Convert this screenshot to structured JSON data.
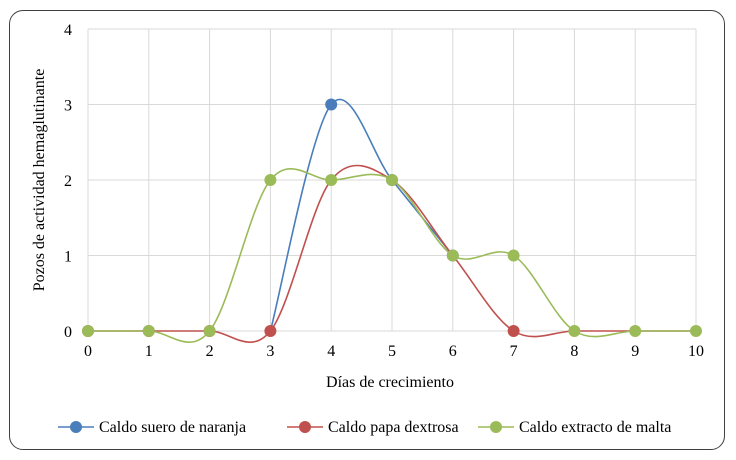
{
  "chart_data": {
    "type": "line",
    "title": "",
    "xlabel": "Días de crecimiento",
    "ylabel": "Pozos de actividad hemaglutinante",
    "x_ticks": [
      "0",
      "1",
      "2",
      "3",
      "4",
      "5",
      "6",
      "7",
      "8",
      "9",
      "10"
    ],
    "y_ticks": [
      "0",
      "1",
      "2",
      "3",
      "4"
    ],
    "xlim": [
      0,
      10
    ],
    "ylim": [
      0,
      4
    ],
    "grid": true,
    "smooth": true,
    "legend_position": "bottom",
    "series": [
      {
        "name": "Caldo suero de naranja",
        "color": "#4a7ebb",
        "x": [
          4,
          5,
          6
        ],
        "y": [
          3,
          2,
          1
        ],
        "line_x": [
          3,
          4,
          5,
          6
        ],
        "line_y": [
          0,
          3,
          2,
          1
        ]
      },
      {
        "name": "Caldo papa dextrosa",
        "color": "#c0504d",
        "x": [
          0,
          1,
          2,
          3,
          7
        ],
        "y": [
          0,
          0,
          0,
          0,
          0
        ],
        "line_x": [
          0,
          1,
          2,
          3,
          4,
          5,
          6,
          7,
          8,
          9,
          10
        ],
        "line_y": [
          0,
          0,
          0,
          0,
          2,
          2,
          1,
          0,
          0,
          0,
          0
        ]
      },
      {
        "name": "Caldo extracto de malta",
        "color": "#9bbb59",
        "x": [
          0,
          1,
          2,
          3,
          4,
          5,
          6,
          7,
          8,
          9,
          10
        ],
        "y": [
          0,
          0,
          0,
          2,
          2,
          2,
          1,
          1,
          0,
          0,
          0
        ],
        "line_x": [
          0,
          1,
          2,
          3,
          4,
          5,
          6,
          7,
          8,
          9,
          10
        ],
        "line_y": [
          0,
          0,
          0,
          2,
          2,
          2,
          1,
          1,
          0,
          0,
          0
        ]
      }
    ]
  }
}
